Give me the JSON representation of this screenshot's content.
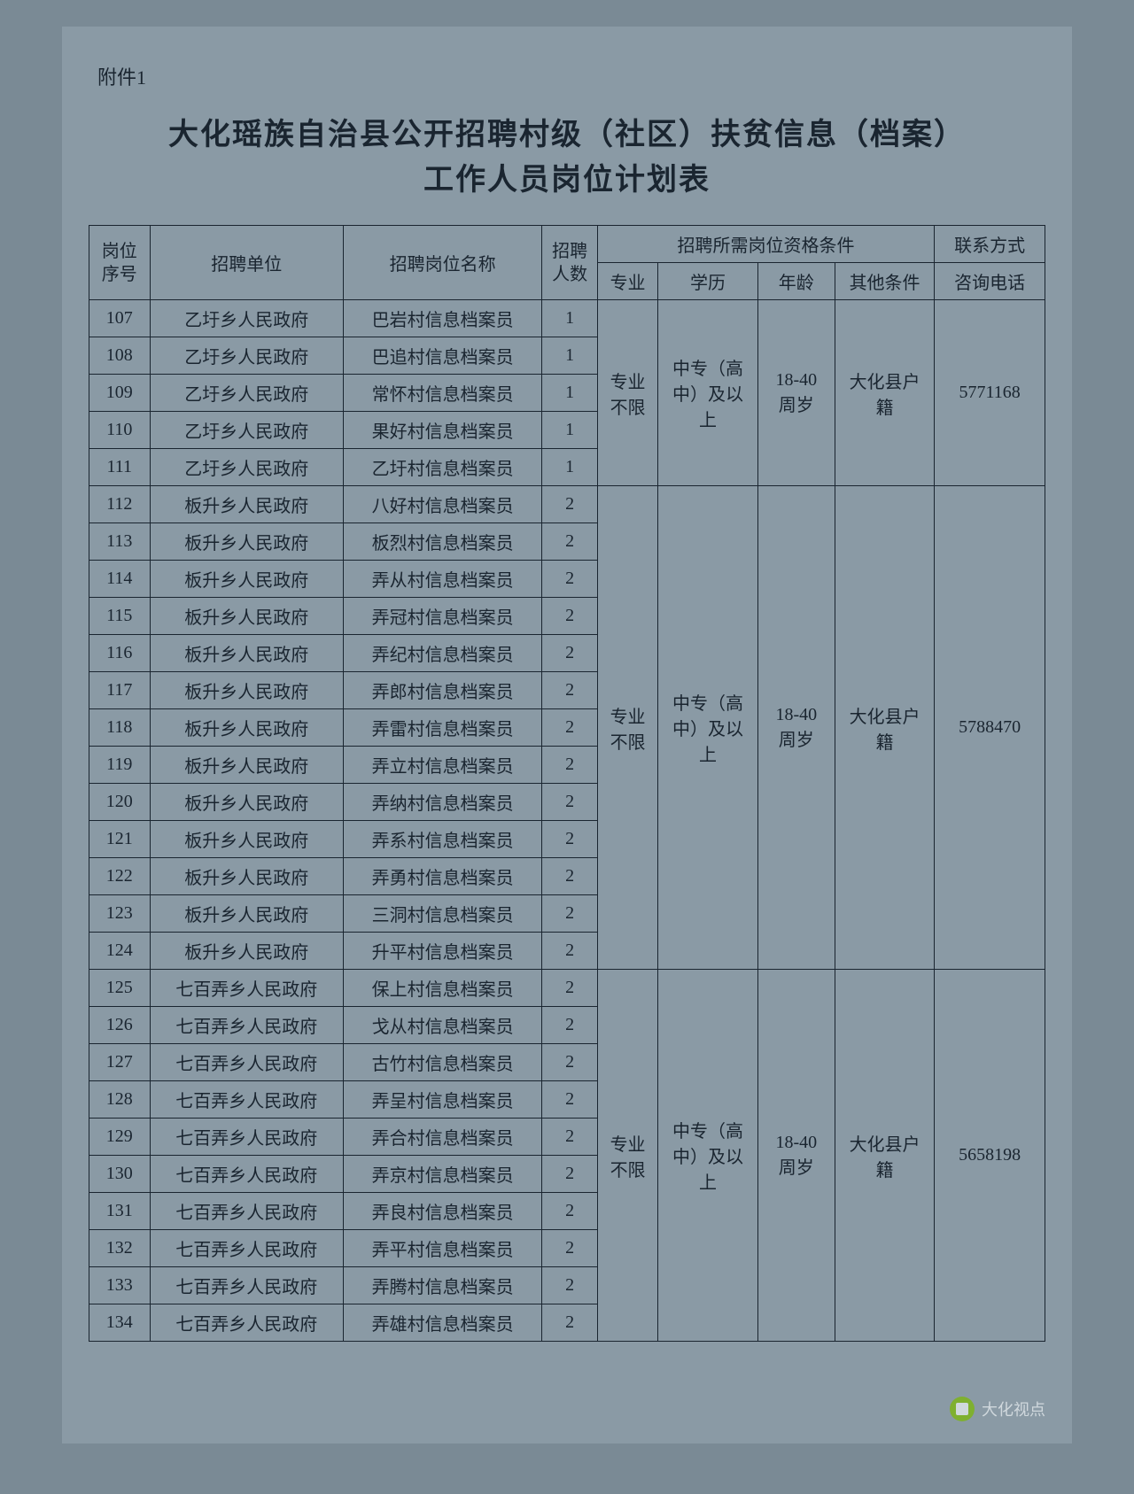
{
  "attachment": "附件1",
  "title_line1": "大化瑶族自治县公开招聘村级（社区）扶贫信息（档案）",
  "title_line2": "工作人员岗位计划表",
  "headers": {
    "seq": "岗位\n序号",
    "unit": "招聘单位",
    "position": "招聘岗位名称",
    "count": "招聘\n人数",
    "qualification_group": "招聘所需岗位资格条件",
    "contact_group": "联系方式",
    "major": "专业",
    "education": "学历",
    "age": "年龄",
    "other": "其他条件",
    "phone": "咨询电话"
  },
  "groups": [
    {
      "major": "专业\n不限",
      "education": "中专（高\n中）及以\n上",
      "age": "18-40\n周岁",
      "other": "大化县户\n籍",
      "phone": "5771168",
      "rows": [
        {
          "seq": "107",
          "unit": "乙圩乡人民政府",
          "position": "巴岩村信息档案员",
          "count": "1"
        },
        {
          "seq": "108",
          "unit": "乙圩乡人民政府",
          "position": "巴追村信息档案员",
          "count": "1"
        },
        {
          "seq": "109",
          "unit": "乙圩乡人民政府",
          "position": "常怀村信息档案员",
          "count": "1"
        },
        {
          "seq": "110",
          "unit": "乙圩乡人民政府",
          "position": "果好村信息档案员",
          "count": "1"
        },
        {
          "seq": "111",
          "unit": "乙圩乡人民政府",
          "position": "乙圩村信息档案员",
          "count": "1"
        }
      ]
    },
    {
      "major": "专业\n不限",
      "education": "中专（高\n中）及以\n上",
      "age": "18-40\n周岁",
      "other": "大化县户\n籍",
      "phone": "5788470",
      "rows": [
        {
          "seq": "112",
          "unit": "板升乡人民政府",
          "position": "八好村信息档案员",
          "count": "2"
        },
        {
          "seq": "113",
          "unit": "板升乡人民政府",
          "position": "板烈村信息档案员",
          "count": "2"
        },
        {
          "seq": "114",
          "unit": "板升乡人民政府",
          "position": "弄从村信息档案员",
          "count": "2"
        },
        {
          "seq": "115",
          "unit": "板升乡人民政府",
          "position": "弄冠村信息档案员",
          "count": "2"
        },
        {
          "seq": "116",
          "unit": "板升乡人民政府",
          "position": "弄纪村信息档案员",
          "count": "2"
        },
        {
          "seq": "117",
          "unit": "板升乡人民政府",
          "position": "弄郎村信息档案员",
          "count": "2"
        },
        {
          "seq": "118",
          "unit": "板升乡人民政府",
          "position": "弄雷村信息档案员",
          "count": "2"
        },
        {
          "seq": "119",
          "unit": "板升乡人民政府",
          "position": "弄立村信息档案员",
          "count": "2"
        },
        {
          "seq": "120",
          "unit": "板升乡人民政府",
          "position": "弄纳村信息档案员",
          "count": "2"
        },
        {
          "seq": "121",
          "unit": "板升乡人民政府",
          "position": "弄系村信息档案员",
          "count": "2"
        },
        {
          "seq": "122",
          "unit": "板升乡人民政府",
          "position": "弄勇村信息档案员",
          "count": "2"
        },
        {
          "seq": "123",
          "unit": "板升乡人民政府",
          "position": "三洞村信息档案员",
          "count": "2"
        },
        {
          "seq": "124",
          "unit": "板升乡人民政府",
          "position": "升平村信息档案员",
          "count": "2"
        }
      ]
    },
    {
      "major": "专业\n不限",
      "education": "中专（高\n中）及以\n上",
      "age": "18-40\n周岁",
      "other": "大化县户\n籍",
      "phone": "5658198",
      "rows": [
        {
          "seq": "125",
          "unit": "七百弄乡人民政府",
          "position": "保上村信息档案员",
          "count": "2"
        },
        {
          "seq": "126",
          "unit": "七百弄乡人民政府",
          "position": "戈从村信息档案员",
          "count": "2"
        },
        {
          "seq": "127",
          "unit": "七百弄乡人民政府",
          "position": "古竹村信息档案员",
          "count": "2"
        },
        {
          "seq": "128",
          "unit": "七百弄乡人民政府",
          "position": "弄呈村信息档案员",
          "count": "2"
        },
        {
          "seq": "129",
          "unit": "七百弄乡人民政府",
          "position": "弄合村信息档案员",
          "count": "2"
        },
        {
          "seq": "130",
          "unit": "七百弄乡人民政府",
          "position": "弄京村信息档案员",
          "count": "2"
        },
        {
          "seq": "131",
          "unit": "七百弄乡人民政府",
          "position": "弄良村信息档案员",
          "count": "2"
        },
        {
          "seq": "132",
          "unit": "七百弄乡人民政府",
          "position": "弄平村信息档案员",
          "count": "2"
        },
        {
          "seq": "133",
          "unit": "七百弄乡人民政府",
          "position": "弄腾村信息档案员",
          "count": "2"
        },
        {
          "seq": "134",
          "unit": "七百弄乡人民政府",
          "position": "弄雄村信息档案员",
          "count": "2"
        }
      ]
    }
  ],
  "watermark": "大化视点",
  "styling": {
    "page_bg": "#7a8a95",
    "paper_bg": "#8a9aa5",
    "text_color": "#1a2530",
    "border_color": "#1a2530",
    "title_fontsize": 34,
    "body_fontsize": 20,
    "attachment_fontsize": 22
  }
}
